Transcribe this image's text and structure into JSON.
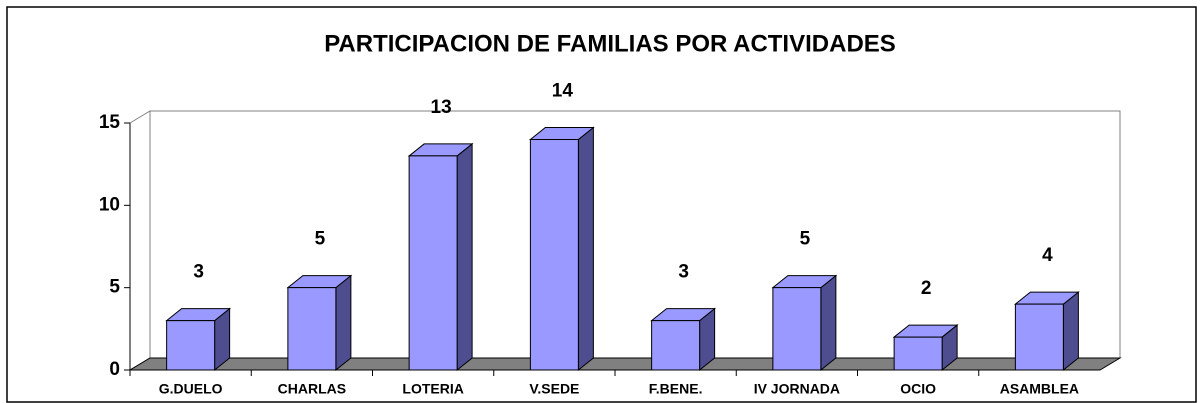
{
  "chart_data": {
    "type": "bar",
    "title": "PARTICIPACION DE FAMILIAS POR ACTIVIDADES",
    "categories": [
      "G.DUELO",
      "CHARLAS",
      "LOTERIA",
      "V.SEDE",
      "F.BENE.",
      "IV JORNADA",
      "OCIO",
      "ASAMBLEA"
    ],
    "values": [
      3,
      5,
      13,
      14,
      3,
      5,
      2,
      4
    ],
    "color": "#9999ff",
    "ylim": [
      0,
      15
    ],
    "yticks": [
      0,
      5,
      10,
      15
    ],
    "grid": false
  }
}
